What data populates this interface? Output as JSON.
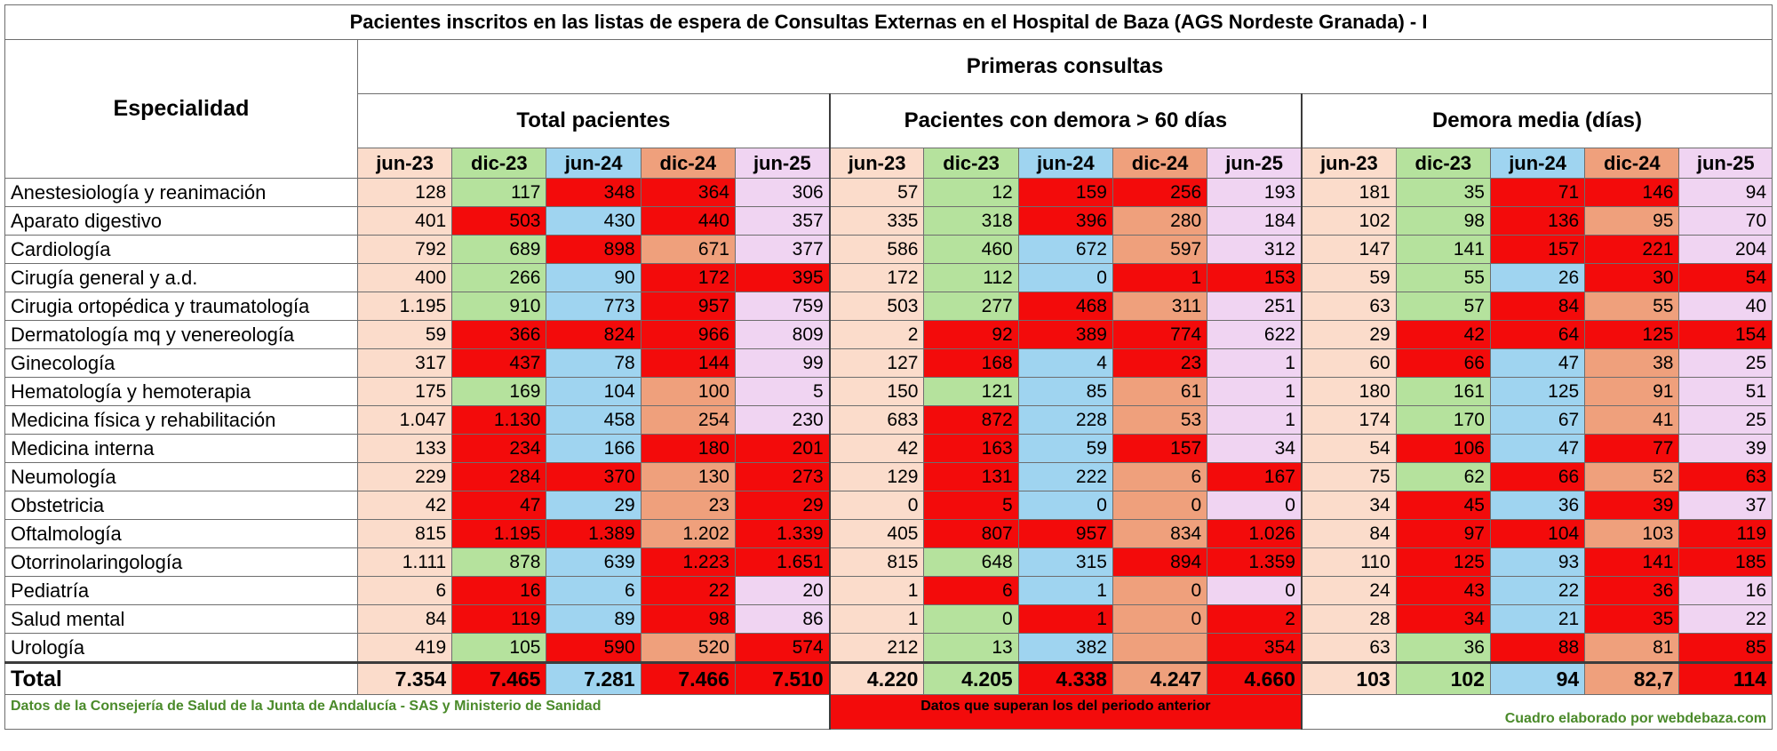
{
  "title": "Pacientes inscritos en las listas de espera de Consultas Externas en el Hospital de Baza  (AGS Nordeste Granada) - I",
  "header": {
    "primeras": "Primeras consultas",
    "especialidad": "Especialidad",
    "groups": [
      "Total pacientes",
      "Pacientes con demora > 60 días",
      "Demora media (días)"
    ],
    "periods": [
      "jun-23",
      "dic-23",
      "jun-24",
      "dic-24",
      "jun-25"
    ]
  },
  "colors": {
    "jun23": "#fbdccb",
    "dic23": "#b5e29d",
    "jun24": "#9fd4f0",
    "dic24": "#efa07c",
    "jun25": "#f0d4f2",
    "red": "#f30b0b",
    "white": "#ffffff"
  },
  "rows": [
    {
      "name": "Anestesiología y reanimación",
      "values": [
        "128",
        "117",
        "348",
        "364",
        "306",
        "57",
        "12",
        "159",
        "256",
        "193",
        "181",
        "35",
        "71",
        "146",
        "94"
      ],
      "red": [
        2,
        3,
        7,
        8,
        12,
        13
      ]
    },
    {
      "name": "Aparato digestivo",
      "values": [
        "401",
        "503",
        "430",
        "440",
        "357",
        "335",
        "318",
        "396",
        "280",
        "184",
        "102",
        "98",
        "136",
        "95",
        "70"
      ],
      "red": [
        1,
        3,
        7,
        12
      ]
    },
    {
      "name": "Cardiología",
      "values": [
        "792",
        "689",
        "898",
        "671",
        "377",
        "586",
        "460",
        "672",
        "597",
        "312",
        "147",
        "141",
        "157",
        "221",
        "204"
      ],
      "red": [
        2,
        12,
        13
      ]
    },
    {
      "name": "Cirugía general y a.d.",
      "values": [
        "400",
        "266",
        "90",
        "172",
        "395",
        "172",
        "112",
        "0",
        "1",
        "153",
        "59",
        "55",
        "26",
        "30",
        "54"
      ],
      "red": [
        3,
        4,
        8,
        9,
        13,
        14
      ]
    },
    {
      "name": "Cirugia ortopédica y traumatología",
      "values": [
        "1.195",
        "910",
        "773",
        "957",
        "759",
        "503",
        "277",
        "468",
        "311",
        "251",
        "63",
        "57",
        "84",
        "55",
        "40"
      ],
      "red": [
        3,
        7,
        12
      ]
    },
    {
      "name": "Dermatología mq y venereología",
      "values": [
        "59",
        "366",
        "824",
        "966",
        "809",
        "2",
        "92",
        "389",
        "774",
        "622",
        "29",
        "42",
        "64",
        "125",
        "154"
      ],
      "red": [
        1,
        2,
        3,
        6,
        7,
        8,
        11,
        12,
        13,
        14
      ]
    },
    {
      "name": "Ginecología",
      "values": [
        "317",
        "437",
        "78",
        "144",
        "99",
        "127",
        "168",
        "4",
        "23",
        "1",
        "60",
        "66",
        "47",
        "38",
        "25"
      ],
      "red": [
        1,
        3,
        6,
        8,
        11
      ]
    },
    {
      "name": "Hematología y hemoterapia",
      "values": [
        "175",
        "169",
        "104",
        "100",
        "5",
        "150",
        "121",
        "85",
        "61",
        "1",
        "180",
        "161",
        "125",
        "91",
        "51"
      ],
      "red": []
    },
    {
      "name": "Medicina física y rehabilitación",
      "values": [
        "1.047",
        "1.130",
        "458",
        "254",
        "230",
        "683",
        "872",
        "228",
        "53",
        "1",
        "174",
        "170",
        "67",
        "41",
        "25"
      ],
      "red": [
        1,
        6
      ]
    },
    {
      "name": "Medicina interna",
      "values": [
        "133",
        "234",
        "166",
        "180",
        "201",
        "42",
        "163",
        "59",
        "157",
        "34",
        "54",
        "106",
        "47",
        "77",
        "39"
      ],
      "red": [
        1,
        3,
        4,
        6,
        8,
        11,
        13
      ]
    },
    {
      "name": "Neumología",
      "values": [
        "229",
        "284",
        "370",
        "130",
        "273",
        "129",
        "131",
        "222",
        "6",
        "167",
        "75",
        "62",
        "66",
        "52",
        "63"
      ],
      "red": [
        1,
        2,
        4,
        6,
        9,
        12,
        14
      ]
    },
    {
      "name": "Obstetricia",
      "values": [
        "42",
        "47",
        "29",
        "23",
        "29",
        "0",
        "5",
        "0",
        "0",
        "0",
        "34",
        "45",
        "36",
        "39",
        "37"
      ],
      "red": [
        1,
        4,
        6,
        11,
        13
      ]
    },
    {
      "name": "Oftalmología",
      "values": [
        "815",
        "1.195",
        "1.389",
        "1.202",
        "1.339",
        "405",
        "807",
        "957",
        "834",
        "1.026",
        "84",
        "97",
        "104",
        "103",
        "119"
      ],
      "red": [
        1,
        2,
        4,
        6,
        7,
        9,
        11,
        12,
        14
      ]
    },
    {
      "name": "Otorrinolaringología",
      "values": [
        "1.111",
        "878",
        "639",
        "1.223",
        "1.651",
        "815",
        "648",
        "315",
        "894",
        "1.359",
        "110",
        "125",
        "93",
        "141",
        "185"
      ],
      "red": [
        3,
        4,
        8,
        9,
        11,
        13,
        14
      ]
    },
    {
      "name": "Pediatría",
      "values": [
        "6",
        "16",
        "6",
        "22",
        "20",
        "1",
        "6",
        "1",
        "0",
        "0",
        "24",
        "43",
        "22",
        "36",
        "16"
      ],
      "red": [
        1,
        3,
        6,
        11,
        13
      ]
    },
    {
      "name": "Salud mental",
      "values": [
        "84",
        "119",
        "89",
        "98",
        "86",
        "1",
        "0",
        "1",
        "0",
        "2",
        "28",
        "34",
        "21",
        "35",
        "22"
      ],
      "red": [
        1,
        3,
        7,
        9,
        11,
        13
      ]
    },
    {
      "name": "Urología",
      "values": [
        "419",
        "105",
        "590",
        "520",
        "574",
        "212",
        "13",
        "382",
        "",
        "354",
        "63",
        "36",
        "88",
        "81",
        "85"
      ],
      "red": [
        2,
        4,
        9,
        12,
        14
      ]
    }
  ],
  "total": {
    "label": "Total",
    "values": [
      "7.354",
      "7.465",
      "7.281",
      "7.466",
      "7.510",
      "4.220",
      "4.205",
      "4.338",
      "4.247",
      "4.660",
      "103",
      "102",
      "94",
      "82,7",
      "114"
    ],
    "red": [
      1,
      3,
      4,
      7,
      9,
      14
    ]
  },
  "footer": {
    "source": "Datos de la Consejería de Salud de  la Junta de Andalucía - SAS  y Ministerio de Sanidad",
    "legend": "Datos que superan los del periodo anterior",
    "credit": "Cuadro elaborado por webdebaza.com"
  }
}
